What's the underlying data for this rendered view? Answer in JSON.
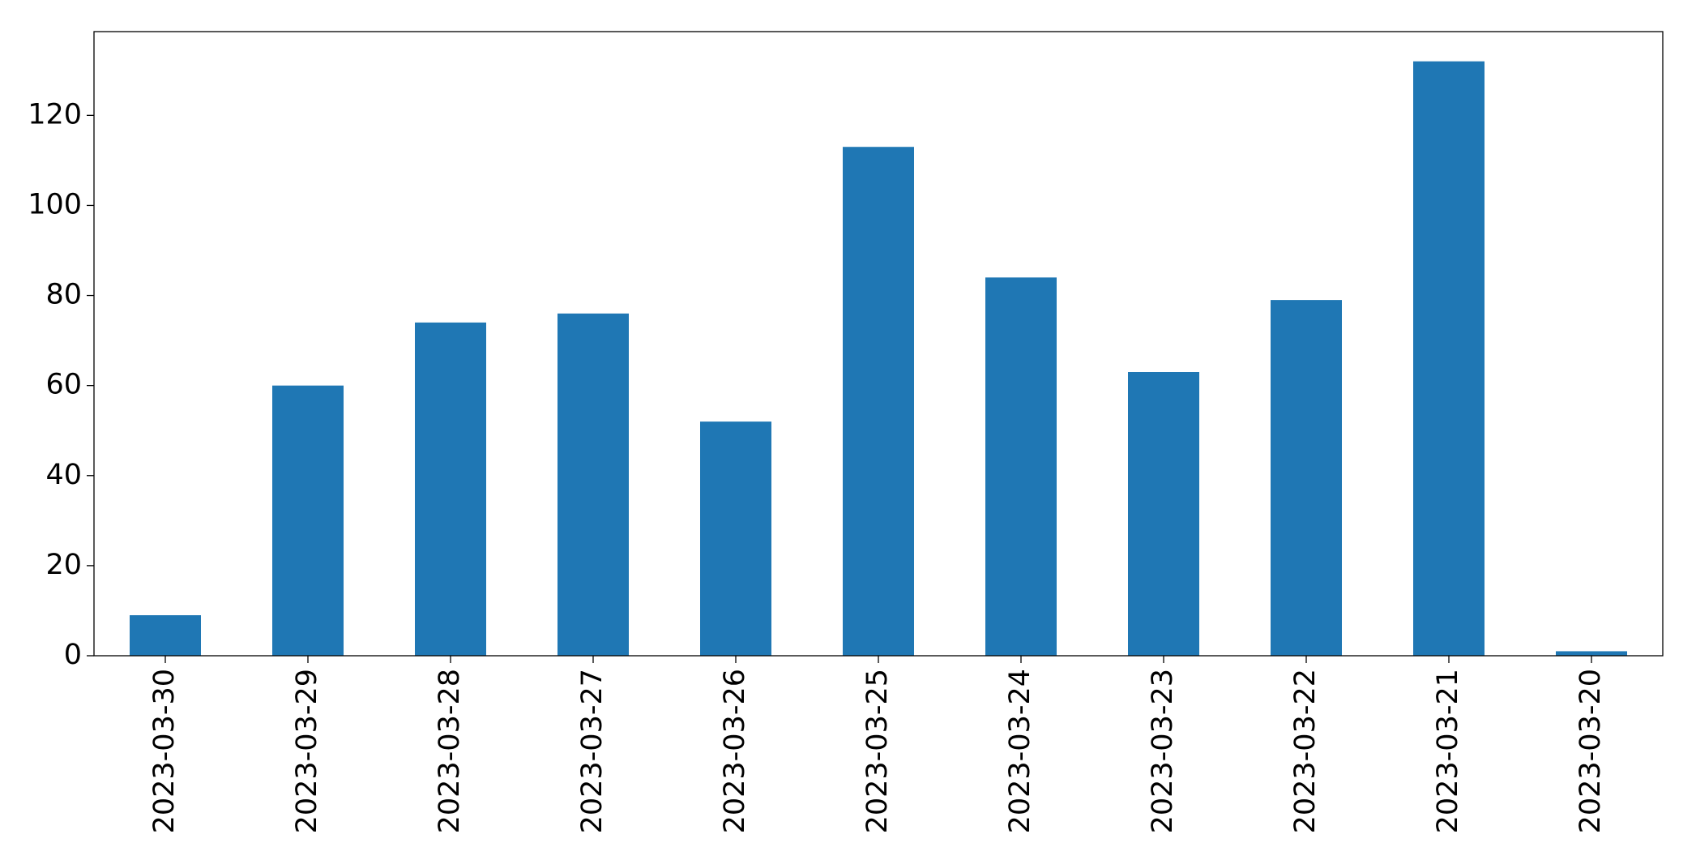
{
  "chart_data": {
    "type": "bar",
    "categories": [
      "2023-03-30",
      "2023-03-29",
      "2023-03-28",
      "2023-03-27",
      "2023-03-26",
      "2023-03-25",
      "2023-03-24",
      "2023-03-23",
      "2023-03-22",
      "2023-03-21",
      "2023-03-20"
    ],
    "values": [
      9,
      60,
      74,
      76,
      52,
      113,
      84,
      63,
      79,
      132,
      1
    ],
    "color": "#1f77b4",
    "ylim": [
      0,
      138.6
    ],
    "yticks": [
      0,
      20,
      40,
      60,
      80,
      100,
      120
    ],
    "grid": false
  }
}
